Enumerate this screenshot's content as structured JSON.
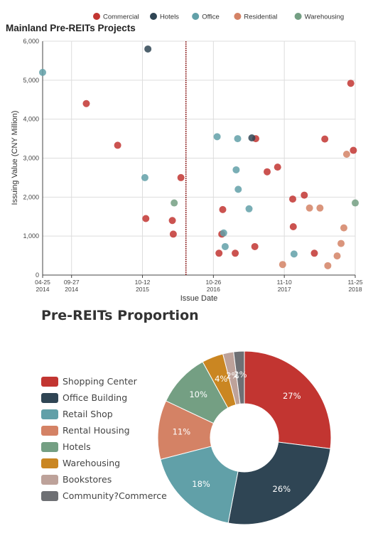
{
  "chart_data": [
    {
      "type": "scatter",
      "title": "Mainland Pre-REITs Projects",
      "xlabel": "Issue Date",
      "ylabel": "Issuing Value (CNY Million)",
      "ylim": [
        0,
        6000
      ],
      "yticks": [
        "0",
        "1,000",
        "2,000",
        "3,000",
        "4,000",
        "5,000",
        "6,000"
      ],
      "xticks": [
        {
          "date": "2014-04-25",
          "line1": "04-25",
          "line2": "2014"
        },
        {
          "date": "2014-09-27",
          "line1": "09-27",
          "line2": "2014"
        },
        {
          "date": "2015-10-12",
          "line1": "10-12",
          "line2": "2015"
        },
        {
          "date": "2016-10-26",
          "line1": "10-26",
          "line2": "2016"
        },
        {
          "date": "2017-11-10",
          "line1": "11-10",
          "line2": "2017"
        },
        {
          "date": "2018-11-25",
          "line1": "11-25",
          "line2": "2018"
        }
      ],
      "xlim": [
        "2014-04-25",
        "2018-11-25"
      ],
      "markline_date": "2016-06-01",
      "grid": true,
      "legend_position": "top-center",
      "series": [
        {
          "name": "Commercial",
          "color": "#c23531",
          "points": [
            [
              "2014-12-15",
              4400
            ],
            [
              "2015-06-01",
              3330
            ],
            [
              "2015-10-30",
              1450
            ],
            [
              "2016-03-20",
              1400
            ],
            [
              "2016-03-25",
              1050
            ],
            [
              "2016-05-05",
              2500
            ],
            [
              "2016-11-25",
              560
            ],
            [
              "2016-12-15",
              1680
            ],
            [
              "2016-12-10",
              1050
            ],
            [
              "2017-02-20",
              560
            ],
            [
              "2017-06-10",
              3500
            ],
            [
              "2017-06-05",
              730
            ],
            [
              "2017-08-10",
              2650
            ],
            [
              "2017-10-05",
              2770
            ],
            [
              "2017-12-25",
              1950
            ],
            [
              "2017-12-28",
              1240
            ],
            [
              "2018-02-25",
              2050
            ],
            [
              "2018-04-20",
              560
            ],
            [
              "2018-06-15",
              3490
            ],
            [
              "2018-11-01",
              4920
            ],
            [
              "2018-11-15",
              3200
            ]
          ]
        },
        {
          "name": "Hotels",
          "color": "#2f4554",
          "points": [
            [
              "2015-11-10",
              5800
            ],
            [
              "2017-05-20",
              3520
            ]
          ]
        },
        {
          "name": "Office",
          "color": "#61a0a8",
          "points": [
            [
              "2014-04-25",
              5200
            ],
            [
              "2015-10-25",
              2500
            ],
            [
              "2016-11-15",
              3550
            ],
            [
              "2016-12-20",
              1080
            ],
            [
              "2016-12-28",
              730
            ],
            [
              "2017-02-25",
              2700
            ],
            [
              "2017-03-05",
              3500
            ],
            [
              "2017-03-08",
              2200
            ],
            [
              "2017-05-05",
              1700
            ],
            [
              "2018-01-01",
              540
            ]
          ]
        },
        {
          "name": "Residential",
          "color": "#d48265",
          "points": [
            [
              "2017-11-01",
              270
            ],
            [
              "2018-03-25",
              1720
            ],
            [
              "2018-05-20",
              1720
            ],
            [
              "2018-07-01",
              240
            ],
            [
              "2018-08-20",
              490
            ],
            [
              "2018-09-10",
              810
            ],
            [
              "2018-09-25",
              1210
            ],
            [
              "2018-10-10",
              3100
            ]
          ]
        },
        {
          "name": "Warehousing",
          "color": "#749f83",
          "points": [
            [
              "2016-03-30",
              1850
            ],
            [
              "2018-11-25",
              1850
            ]
          ]
        }
      ]
    },
    {
      "type": "pie",
      "title": "Pre-REITs Proportion",
      "legend_position": "left",
      "slices": [
        {
          "name": "Shopping Center",
          "value": 27,
          "label": "27%",
          "color": "#c23531"
        },
        {
          "name": "Office Building",
          "value": 26,
          "label": "26%",
          "color": "#2f4554"
        },
        {
          "name": "Retail Shop",
          "value": 18,
          "label": "18%",
          "color": "#61a0a8"
        },
        {
          "name": "Rental Housing",
          "value": 11,
          "label": "11%",
          "color": "#d48265"
        },
        {
          "name": "Hotels",
          "value": 10,
          "label": "10%",
          "color": "#749f83"
        },
        {
          "name": "Warehousing",
          "value": 4,
          "label": "4%",
          "color": "#ca8622"
        },
        {
          "name": "Bookstores",
          "value": 2,
          "label": "2%",
          "color": "#bda29a"
        },
        {
          "name": "Community?Commerce",
          "value": 2,
          "label": "2%",
          "color": "#6e7074"
        }
      ]
    }
  ]
}
